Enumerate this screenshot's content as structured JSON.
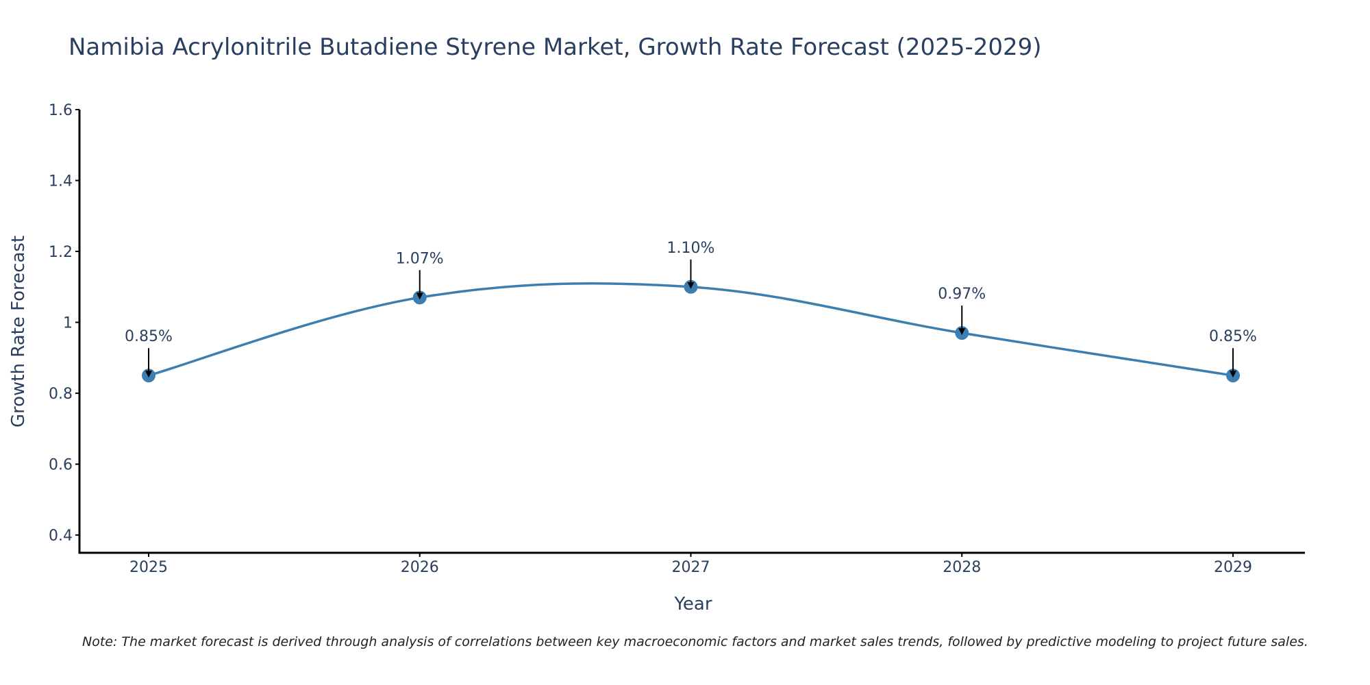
{
  "chart_data": {
    "type": "line",
    "title": "Namibia Acrylonitrile Butadiene Styrene Market, Growth Rate Forecast (2025-2029)",
    "xlabel": "Year",
    "ylabel": "Growth Rate Forecast",
    "categories": [
      "2025",
      "2026",
      "2027",
      "2028",
      "2029"
    ],
    "series": [
      {
        "name": "Growth Rate Forecast",
        "values": [
          0.85,
          1.07,
          1.1,
          0.97,
          0.85
        ],
        "labels": [
          "0.85%",
          "1.07%",
          "1.10%",
          "0.97%",
          "0.85%"
        ],
        "color": "#3d7eb0"
      }
    ],
    "ylim": [
      0.35,
      1.6
    ],
    "yticks": [
      0.4,
      0.6,
      0.8,
      1,
      1.2,
      1.4,
      1.6
    ],
    "ytick_labels": [
      "0.4",
      "0.6",
      "0.8",
      "1",
      "1.2",
      "1.4",
      "1.6"
    ],
    "grid": false,
    "line_shape": "spline"
  },
  "note": "Note: The market forecast is derived through analysis of correlations between key macroeconomic factors and market sales trends, followed by predictive modeling to project future sales."
}
